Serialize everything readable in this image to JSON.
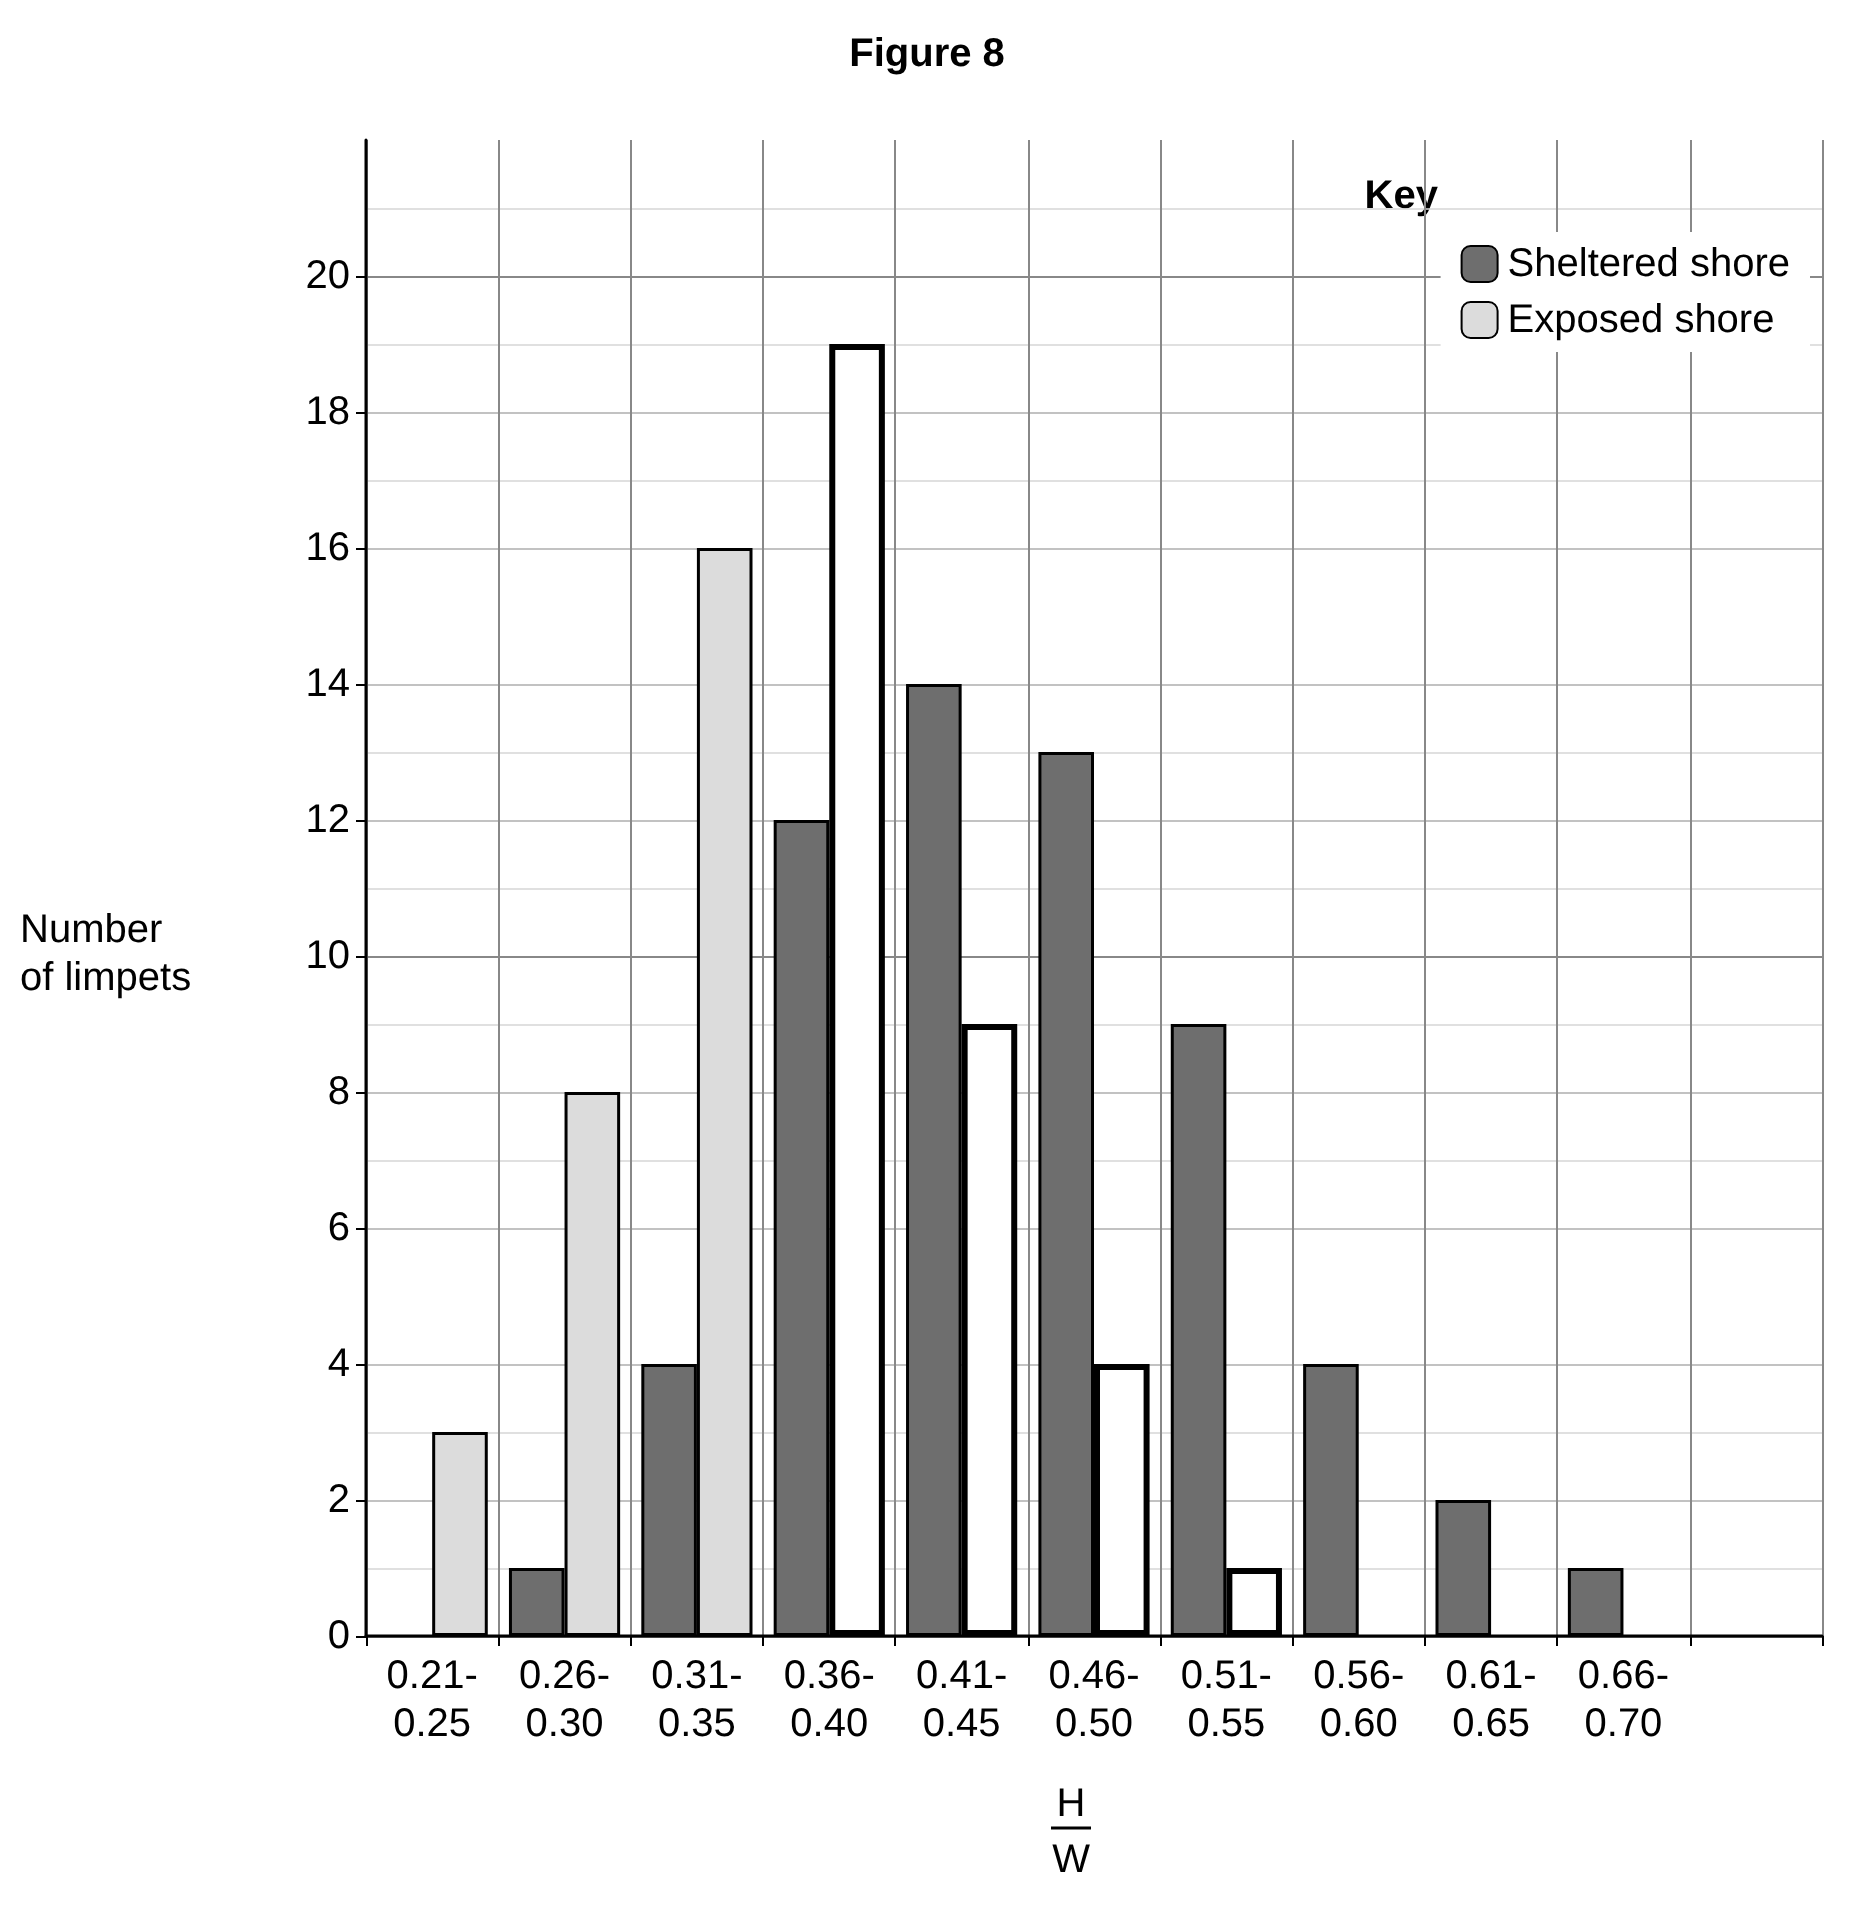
{
  "chart_data": {
    "type": "bar",
    "title": "Figure 8",
    "xlabel": "H\nW",
    "ylabel": "Number\nof limpets",
    "legend_title": "Key",
    "categories": [
      "0.21-\n0.25",
      "0.26-\n0.30",
      "0.31-\n0.35",
      "0.36-\n0.40",
      "0.41-\n0.45",
      "0.46-\n0.50",
      "0.51-\n0.55",
      "0.56-\n0.60",
      "0.61-\n0.65",
      "0.66-\n0.70",
      null
    ],
    "series": [
      {
        "name": "Sheltered shore",
        "color": "#6e6e6e",
        "values": [
          null,
          1,
          4,
          12,
          14,
          13,
          9,
          4,
          2,
          1,
          null
        ]
      },
      {
        "name": "Exposed shore",
        "color": "#dcdcdc",
        "colors": [
          "#dcdcdc",
          "#dcdcdc",
          "#dcdcdc",
          "#ffffff",
          "#ffffff",
          "#ffffff",
          "#ffffff",
          "#ffffff",
          "#ffffff",
          "#ffffff",
          "#ffffff"
        ],
        "values": [
          3,
          8,
          16,
          19,
          9,
          4,
          1,
          null,
          null,
          null,
          null
        ]
      }
    ],
    "ylim": [
      0,
      22
    ],
    "yticks": [
      0,
      2,
      4,
      6,
      8,
      10,
      12,
      14,
      16,
      18,
      20
    ],
    "grid": true,
    "legend": "top right"
  }
}
